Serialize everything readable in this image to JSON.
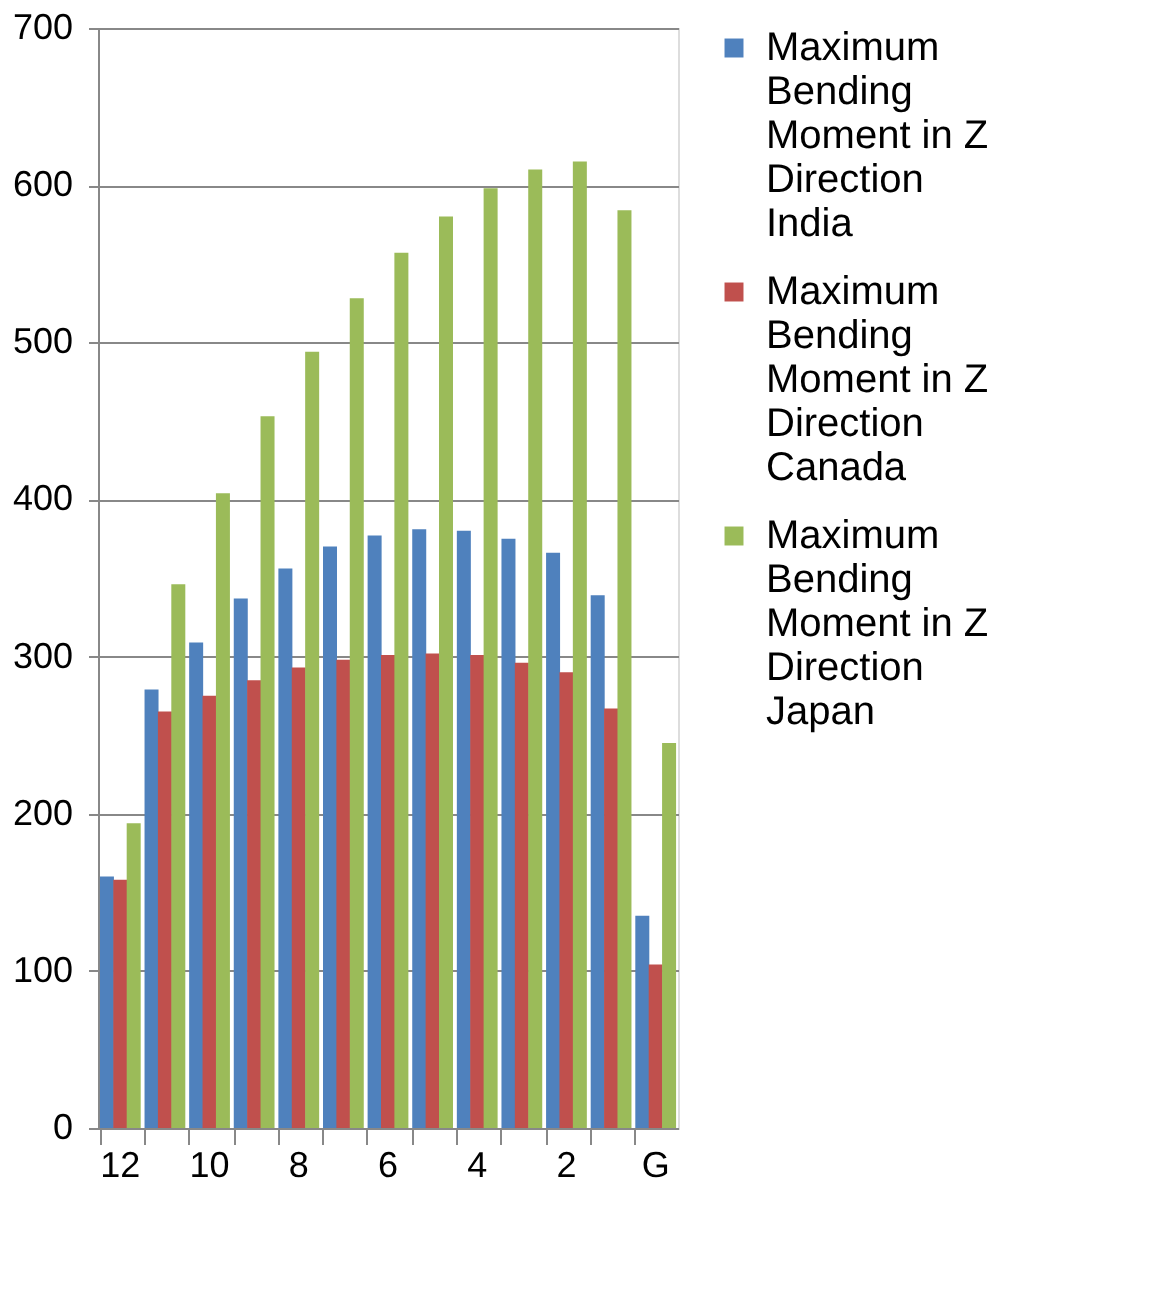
{
  "chart_data": {
    "type": "bar",
    "categories": [
      "12",
      null,
      "10",
      null,
      "8",
      null,
      "6",
      null,
      "4",
      null,
      "2",
      null,
      "G"
    ],
    "series": [
      {
        "name": "Maximum Bending Moment in Z Direction India",
        "color": "#4f81bd",
        "values": [
          160,
          279,
          309,
          337,
          356,
          370,
          377,
          381,
          380,
          375,
          366,
          339,
          135
        ]
      },
      {
        "name": "Maximum Bending Moment in Z Direction Canada",
        "color": "#c0504d",
        "values": [
          158,
          265,
          275,
          285,
          293,
          298,
          301,
          302,
          301,
          296,
          290,
          267,
          104
        ]
      },
      {
        "name": "Maximum Bending Moment in Z Direction Japan",
        "color": "#9bbb59",
        "values": [
          194,
          346,
          404,
          453,
          494,
          528,
          557,
          580,
          598,
          610,
          615,
          584,
          245
        ]
      }
    ],
    "ylim": [
      0,
      700
    ],
    "yticks": [
      0,
      100,
      200,
      300,
      400,
      500,
      600,
      700
    ],
    "grid": "y",
    "legend": "right"
  }
}
